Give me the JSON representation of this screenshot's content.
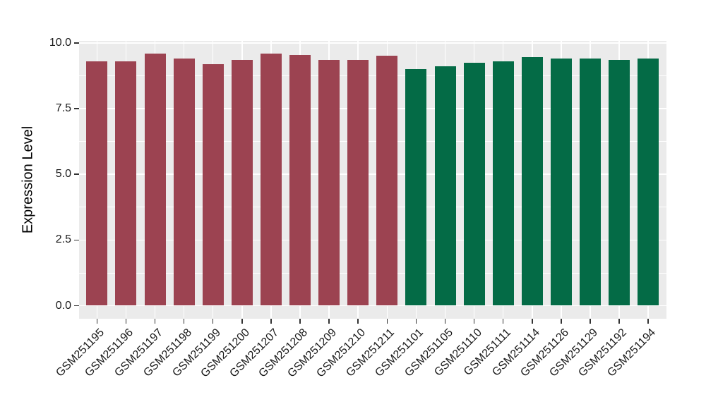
{
  "chart_data": {
    "type": "bar",
    "title": "",
    "xlabel": "",
    "ylabel": "Expression Level",
    "ylim": [
      0,
      10
    ],
    "yticks": [
      0,
      2.5,
      5,
      7.5,
      10
    ],
    "ytick_labels": [
      "0.0",
      "2.5",
      "5.0",
      "7.5",
      "10.0"
    ],
    "minor_gridlines": [
      1.25,
      3.75,
      6.25,
      8.75
    ],
    "grid": "on",
    "legend": "none",
    "panel_bg": "#EBEBEB",
    "grid_color": "#FFFFFF",
    "categories": [
      "GSM251195",
      "GSM251196",
      "GSM251197",
      "GSM251198",
      "GSM251199",
      "GSM251200",
      "GSM251207",
      "GSM251208",
      "GSM251209",
      "GSM251210",
      "GSM251211",
      "GSM251101",
      "GSM251105",
      "GSM251110",
      "GSM251111",
      "GSM251114",
      "GSM251126",
      "GSM251129",
      "GSM251192",
      "GSM251194"
    ],
    "values": [
      9.3,
      9.3,
      9.6,
      9.4,
      9.2,
      9.35,
      9.6,
      9.55,
      9.35,
      9.35,
      9.5,
      9.0,
      9.1,
      9.25,
      9.3,
      9.45,
      9.4,
      9.4,
      9.35,
      9.4
    ],
    "bar_colors": [
      "#9C4351",
      "#9C4351",
      "#9C4351",
      "#9C4351",
      "#9C4351",
      "#9C4351",
      "#9C4351",
      "#9C4351",
      "#9C4351",
      "#9C4351",
      "#9C4351",
      "#046B46",
      "#046B46",
      "#046B46",
      "#046B46",
      "#046B46",
      "#046B46",
      "#046B46",
      "#046B46",
      "#046B46"
    ],
    "group_colors": {
      "left_group": "#9C4351",
      "right_group": "#046B46"
    }
  }
}
